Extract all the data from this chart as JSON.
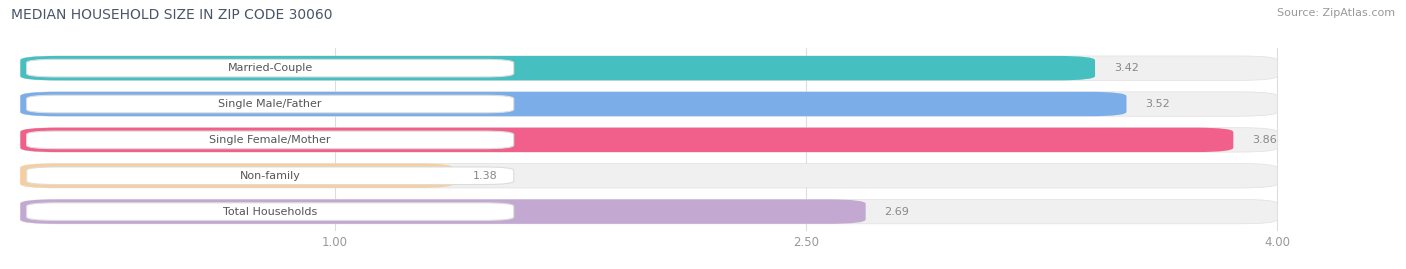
{
  "title": "MEDIAN HOUSEHOLD SIZE IN ZIP CODE 30060",
  "source": "Source: ZipAtlas.com",
  "categories": [
    "Married-Couple",
    "Single Male/Father",
    "Single Female/Mother",
    "Non-family",
    "Total Households"
  ],
  "values": [
    3.42,
    3.52,
    3.86,
    1.38,
    2.69
  ],
  "bar_colors": [
    "#45BFBF",
    "#7BAEE8",
    "#F0608A",
    "#F5CFA0",
    "#C3A8D1"
  ],
  "label_text_colors": [
    "#555555",
    "#555555",
    "#555555",
    "#555555",
    "#555555"
  ],
  "value_colors": [
    "#ffffff",
    "#ffffff",
    "#ffffff",
    "#888888",
    "#888888"
  ],
  "xlim_data": [
    0,
    4.3
  ],
  "xaxis_min": 0,
  "xaxis_max": 4.0,
  "xticks": [
    1.0,
    2.5,
    4.0
  ],
  "background_color": "#ffffff",
  "bar_bg_color": "#f0f0f0",
  "label_pill_color": "#ffffff",
  "grid_color": "#dddddd",
  "title_color": "#4a5568",
  "source_color": "#999999",
  "title_fontsize": 10,
  "source_fontsize": 8,
  "label_fontsize": 8,
  "value_fontsize": 8,
  "tick_fontsize": 8.5,
  "bar_height": 0.68,
  "bar_gap": 0.32
}
